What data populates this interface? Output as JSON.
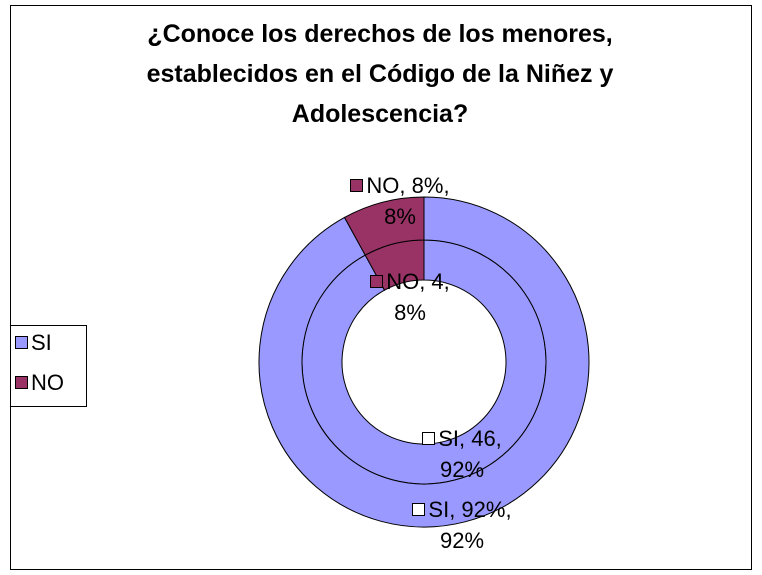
{
  "chart_data": {
    "type": "doughnut",
    "title": "¿Conoce los derechos de los menores, establecidos en el Código de la Niñez y Adolescencia?",
    "categories": [
      "SI",
      "NO"
    ],
    "colors": [
      "#9999ff",
      "#993366"
    ],
    "series": [
      {
        "values": [
          46,
          4
        ],
        "value_labels": [
          "SI, 46, 92%",
          "NO, 4, 8%"
        ]
      },
      {
        "values": [
          92,
          8
        ],
        "value_labels": [
          "SI, 92%, 92%",
          "NO, 8%, 8%"
        ]
      }
    ],
    "legend": "left"
  }
}
